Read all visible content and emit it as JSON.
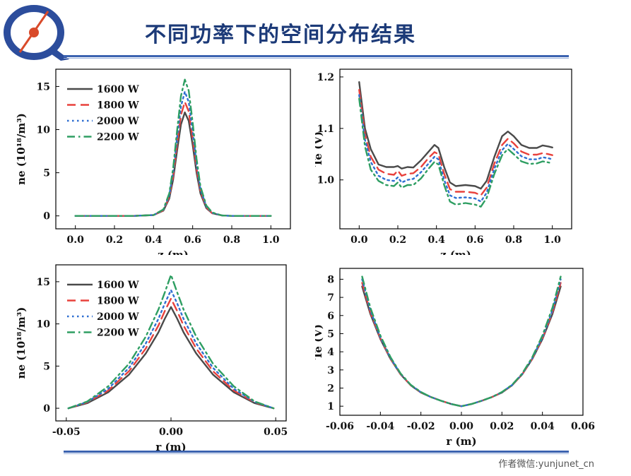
{
  "slide": {
    "title": "不同功率下的空间分布结果",
    "footer": "作者微信:yunjunet_cn",
    "colors": {
      "title": "#1c3a78",
      "rule": "#3c63b0",
      "logo_ring": "#2c4d9c",
      "logo_accent": "#d94a2a"
    }
  },
  "chart_data": [
    {
      "type": "line",
      "xlabel": "z  (m)",
      "ylabel": "ne  (10¹⁸/m³)",
      "xlim": [
        -0.1,
        1.1
      ],
      "ylim": [
        -1.5,
        17
      ],
      "xticks": [
        0.0,
        0.2,
        0.4,
        0.6,
        0.8,
        1.0
      ],
      "yticks": [
        0,
        5,
        10,
        15
      ],
      "xtick_labels": [
        "0.0",
        "0.2",
        "0.4",
        "0.6",
        "0.8",
        "1.0"
      ],
      "ytick_labels": [
        "0",
        "5",
        "10",
        "15"
      ],
      "legend": "top-left",
      "series": [
        {
          "name": "1600 W",
          "color": "#4a4a4a",
          "dash": "solid",
          "x": [
            0,
            0.1,
            0.2,
            0.3,
            0.4,
            0.45,
            0.48,
            0.5,
            0.52,
            0.54,
            0.56,
            0.58,
            0.6,
            0.62,
            0.64,
            0.67,
            0.7,
            0.75,
            0.8,
            0.9,
            1.0
          ],
          "y": [
            0,
            0,
            0,
            0,
            0.1,
            0.6,
            2.0,
            4.2,
            7.5,
            10.6,
            12.0,
            11.0,
            8.2,
            5.0,
            2.6,
            0.9,
            0.3,
            0.05,
            0,
            0,
            0
          ]
        },
        {
          "name": "1800 W",
          "color": "#e8413c",
          "dash": "long",
          "x": [
            0,
            0.1,
            0.2,
            0.3,
            0.4,
            0.45,
            0.48,
            0.5,
            0.52,
            0.54,
            0.56,
            0.58,
            0.6,
            0.62,
            0.64,
            0.67,
            0.7,
            0.75,
            0.8,
            0.9,
            1.0
          ],
          "y": [
            0,
            0,
            0,
            0,
            0.1,
            0.65,
            2.2,
            4.6,
            8.3,
            11.7,
            13.2,
            12.1,
            9.0,
            5.5,
            2.9,
            1.0,
            0.3,
            0.05,
            0,
            0,
            0
          ]
        },
        {
          "name": "2000 W",
          "color": "#2f6fd1",
          "dash": "dot",
          "x": [
            0,
            0.1,
            0.2,
            0.3,
            0.4,
            0.45,
            0.48,
            0.5,
            0.52,
            0.54,
            0.56,
            0.58,
            0.6,
            0.62,
            0.64,
            0.67,
            0.7,
            0.75,
            0.8,
            0.9,
            1.0
          ],
          "y": [
            0,
            0,
            0,
            0,
            0.1,
            0.7,
            2.4,
            5.0,
            9.0,
            12.7,
            14.4,
            13.2,
            9.8,
            6.0,
            3.1,
            1.1,
            0.35,
            0.05,
            0,
            0,
            0
          ]
        },
        {
          "name": "2200 W",
          "color": "#2e9e62",
          "dash": "dashdot",
          "x": [
            0,
            0.1,
            0.2,
            0.3,
            0.4,
            0.45,
            0.48,
            0.5,
            0.52,
            0.54,
            0.56,
            0.58,
            0.6,
            0.62,
            0.64,
            0.67,
            0.7,
            0.75,
            0.8,
            0.9,
            1.0
          ],
          "y": [
            0,
            0,
            0,
            0,
            0.1,
            0.75,
            2.6,
            5.5,
            9.8,
            13.9,
            15.8,
            14.5,
            10.8,
            6.6,
            3.4,
            1.2,
            0.4,
            0.05,
            0,
            0,
            0
          ]
        }
      ]
    },
    {
      "type": "line",
      "xlabel": "z  (m)",
      "ylabel": "Te  (V)",
      "xlim": [
        -0.1,
        1.1
      ],
      "ylim": [
        0.905,
        1.215
      ],
      "xticks": [
        0.0,
        0.2,
        0.4,
        0.6,
        0.8,
        1.0
      ],
      "yticks": [
        1.0,
        1.1,
        1.2
      ],
      "xtick_labels": [
        "0.0",
        "0.2",
        "0.4",
        "0.6",
        "0.8",
        "1.0"
      ],
      "ytick_labels": [
        "1.0",
        "1.1",
        "1.2"
      ],
      "legend": "none",
      "series": [
        {
          "name": "1600 W",
          "color": "#4a4a4a",
          "dash": "solid",
          "x": [
            0.0,
            0.03,
            0.06,
            0.1,
            0.14,
            0.18,
            0.2,
            0.22,
            0.25,
            0.28,
            0.32,
            0.36,
            0.39,
            0.41,
            0.44,
            0.47,
            0.5,
            0.55,
            0.6,
            0.63,
            0.66,
            0.7,
            0.74,
            0.77,
            0.8,
            0.84,
            0.88,
            0.92,
            0.95,
            0.98,
            1.0
          ],
          "y": [
            1.19,
            1.1,
            1.06,
            1.03,
            1.025,
            1.025,
            1.027,
            1.022,
            1.025,
            1.024,
            1.038,
            1.055,
            1.068,
            1.062,
            1.025,
            0.995,
            0.988,
            0.99,
            0.988,
            0.983,
            0.998,
            1.045,
            1.085,
            1.094,
            1.085,
            1.068,
            1.062,
            1.062,
            1.067,
            1.065,
            1.063
          ]
        },
        {
          "name": "1800 W",
          "color": "#e8413c",
          "dash": "long",
          "x": [
            0.0,
            0.03,
            0.06,
            0.1,
            0.14,
            0.18,
            0.2,
            0.22,
            0.25,
            0.28,
            0.32,
            0.36,
            0.39,
            0.41,
            0.44,
            0.47,
            0.5,
            0.55,
            0.6,
            0.63,
            0.66,
            0.7,
            0.74,
            0.77,
            0.8,
            0.84,
            0.88,
            0.92,
            0.95,
            0.98,
            1.0
          ],
          "y": [
            1.175,
            1.088,
            1.045,
            1.02,
            1.012,
            1.01,
            1.018,
            1.008,
            1.012,
            1.013,
            1.025,
            1.043,
            1.054,
            1.05,
            1.012,
            0.982,
            0.977,
            0.977,
            0.975,
            0.97,
            0.985,
            1.032,
            1.068,
            1.08,
            1.071,
            1.055,
            1.049,
            1.049,
            1.052,
            1.05,
            1.048
          ]
        },
        {
          "name": "2000 W",
          "color": "#2f6fd1",
          "dash": "dot",
          "x": [
            0.0,
            0.03,
            0.06,
            0.1,
            0.14,
            0.18,
            0.2,
            0.22,
            0.25,
            0.28,
            0.32,
            0.36,
            0.39,
            0.41,
            0.44,
            0.47,
            0.5,
            0.55,
            0.6,
            0.63,
            0.66,
            0.7,
            0.74,
            0.77,
            0.8,
            0.84,
            0.88,
            0.92,
            0.95,
            0.98,
            1.0
          ],
          "y": [
            1.165,
            1.078,
            1.035,
            1.008,
            1.0,
            0.998,
            1.005,
            0.995,
            1.0,
            1.002,
            1.015,
            1.032,
            1.045,
            1.04,
            1.0,
            0.97,
            0.965,
            0.966,
            0.964,
            0.958,
            0.975,
            1.022,
            1.058,
            1.07,
            1.06,
            1.046,
            1.04,
            1.04,
            1.044,
            1.042,
            1.04
          ]
        },
        {
          "name": "2200 W",
          "color": "#2e9e62",
          "dash": "dashdot",
          "x": [
            0.0,
            0.03,
            0.06,
            0.1,
            0.14,
            0.18,
            0.2,
            0.22,
            0.25,
            0.28,
            0.32,
            0.36,
            0.39,
            0.41,
            0.44,
            0.47,
            0.5,
            0.55,
            0.6,
            0.63,
            0.66,
            0.7,
            0.74,
            0.77,
            0.8,
            0.84,
            0.88,
            0.92,
            0.95,
            0.98,
            1.0
          ],
          "y": [
            1.158,
            1.065,
            1.02,
            0.998,
            0.99,
            0.988,
            0.995,
            0.985,
            0.99,
            0.99,
            1.003,
            1.022,
            1.035,
            1.03,
            0.99,
            0.958,
            0.952,
            0.955,
            0.952,
            0.948,
            0.965,
            1.012,
            1.048,
            1.06,
            1.05,
            1.036,
            1.031,
            1.032,
            1.036,
            1.034,
            1.032
          ]
        }
      ]
    },
    {
      "type": "line",
      "xlabel": "r  (m)",
      "ylabel": "ne  (10¹⁸/m³)",
      "xlim": [
        -0.055,
        0.055
      ],
      "ylim": [
        -1.5,
        17
      ],
      "xticks": [
        -0.05,
        0.0,
        0.05
      ],
      "yticks": [
        0,
        5,
        10,
        15
      ],
      "xtick_labels": [
        "-0.05",
        "0.00",
        "0.05"
      ],
      "ytick_labels": [
        "0",
        "5",
        "10",
        "15"
      ],
      "legend": "top-left",
      "series": [
        {
          "name": "1600 W",
          "color": "#4a4a4a",
          "dash": "solid",
          "x": [
            -0.049,
            -0.04,
            -0.03,
            -0.02,
            -0.012,
            -0.006,
            -0.003,
            0.0,
            0.003,
            0.006,
            0.012,
            0.02,
            0.03,
            0.04,
            0.049
          ],
          "y": [
            0,
            0.6,
            1.9,
            4.0,
            6.5,
            9.0,
            10.6,
            12.0,
            10.6,
            9.0,
            6.5,
            4.0,
            1.9,
            0.6,
            0
          ]
        },
        {
          "name": "1800 W",
          "color": "#e8413c",
          "dash": "long",
          "x": [
            -0.049,
            -0.04,
            -0.03,
            -0.02,
            -0.012,
            -0.006,
            -0.003,
            0.0,
            0.003,
            0.006,
            0.012,
            0.02,
            0.03,
            0.04,
            0.049
          ],
          "y": [
            0,
            0.7,
            2.1,
            4.4,
            7.1,
            9.8,
            11.5,
            13.0,
            11.5,
            9.8,
            7.1,
            4.4,
            2.1,
            0.7,
            0
          ]
        },
        {
          "name": "2000 W",
          "color": "#2f6fd1",
          "dash": "dot",
          "x": [
            -0.049,
            -0.04,
            -0.03,
            -0.02,
            -0.012,
            -0.006,
            -0.003,
            0.0,
            0.003,
            0.006,
            0.012,
            0.02,
            0.03,
            0.04,
            0.049
          ],
          "y": [
            0,
            0.75,
            2.3,
            4.8,
            7.7,
            10.6,
            12.4,
            14.0,
            12.4,
            10.6,
            7.7,
            4.8,
            2.3,
            0.75,
            0
          ]
        },
        {
          "name": "2200 W",
          "color": "#2e9e62",
          "dash": "dashdot",
          "x": [
            -0.049,
            -0.04,
            -0.03,
            -0.02,
            -0.012,
            -0.006,
            -0.003,
            0.0,
            0.003,
            0.006,
            0.012,
            0.02,
            0.03,
            0.04,
            0.049
          ],
          "y": [
            0,
            0.8,
            2.6,
            5.3,
            8.5,
            11.7,
            13.7,
            15.8,
            13.7,
            11.7,
            8.5,
            5.3,
            2.6,
            0.8,
            0
          ]
        }
      ]
    },
    {
      "type": "line",
      "xlabel": "r  (m)",
      "ylabel": "Te  (V)",
      "xlim": [
        -0.06,
        0.06
      ],
      "ylim": [
        0.5,
        8.6
      ],
      "xticks": [
        -0.06,
        -0.04,
        -0.02,
        0.0,
        0.02,
        0.04,
        0.06
      ],
      "yticks": [
        1,
        2,
        3,
        4,
        5,
        6,
        7,
        8
      ],
      "xtick_labels": [
        "-0.06",
        "-0.04",
        "-0.02",
        "0.00",
        "0.02",
        "0.04",
        "0.06"
      ],
      "ytick_labels": [
        "1",
        "2",
        "3",
        "4",
        "5",
        "6",
        "7",
        "8"
      ],
      "legend": "none",
      "series": [
        {
          "name": "1600 W",
          "color": "#4a4a4a",
          "dash": "solid",
          "x": [
            -0.049,
            -0.045,
            -0.04,
            -0.035,
            -0.03,
            -0.025,
            -0.02,
            -0.015,
            -0.01,
            -0.005,
            0.0,
            0.005,
            0.01,
            0.015,
            0.02,
            0.025,
            0.03,
            0.035,
            0.04,
            0.045,
            0.049
          ],
          "y": [
            7.6,
            6.1,
            4.7,
            3.6,
            2.75,
            2.15,
            1.75,
            1.5,
            1.3,
            1.12,
            1.0,
            1.12,
            1.3,
            1.5,
            1.75,
            2.15,
            2.75,
            3.6,
            4.7,
            6.1,
            7.6
          ]
        },
        {
          "name": "1800 W",
          "color": "#e8413c",
          "dash": "long",
          "x": [
            -0.049,
            -0.045,
            -0.04,
            -0.035,
            -0.03,
            -0.025,
            -0.02,
            -0.015,
            -0.01,
            -0.005,
            0.0,
            0.005,
            0.01,
            0.015,
            0.02,
            0.025,
            0.03,
            0.035,
            0.04,
            0.045,
            0.049
          ],
          "y": [
            7.8,
            6.2,
            4.75,
            3.62,
            2.76,
            2.16,
            1.76,
            1.5,
            1.3,
            1.12,
            1.0,
            1.12,
            1.3,
            1.5,
            1.76,
            2.16,
            2.76,
            3.62,
            4.75,
            6.2,
            7.8
          ]
        },
        {
          "name": "2000 W",
          "color": "#2f6fd1",
          "dash": "dot",
          "x": [
            -0.049,
            -0.045,
            -0.04,
            -0.035,
            -0.03,
            -0.025,
            -0.02,
            -0.015,
            -0.01,
            -0.005,
            0.0,
            0.005,
            0.01,
            0.015,
            0.02,
            0.025,
            0.03,
            0.035,
            0.04,
            0.045,
            0.049
          ],
          "y": [
            8.0,
            6.3,
            4.8,
            3.65,
            2.78,
            2.17,
            1.77,
            1.5,
            1.3,
            1.12,
            1.0,
            1.12,
            1.3,
            1.5,
            1.77,
            2.17,
            2.78,
            3.65,
            4.8,
            6.3,
            8.0
          ]
        },
        {
          "name": "2200 W",
          "color": "#2e9e62",
          "dash": "dashdot",
          "x": [
            -0.049,
            -0.045,
            -0.04,
            -0.035,
            -0.03,
            -0.025,
            -0.02,
            -0.015,
            -0.01,
            -0.005,
            0.0,
            0.005,
            0.01,
            0.015,
            0.02,
            0.025,
            0.03,
            0.035,
            0.04,
            0.045,
            0.049
          ],
          "y": [
            8.15,
            6.45,
            4.9,
            3.7,
            2.8,
            2.18,
            1.78,
            1.5,
            1.3,
            1.12,
            1.0,
            1.12,
            1.3,
            1.5,
            1.78,
            2.18,
            2.8,
            3.7,
            4.9,
            6.45,
            8.15
          ]
        }
      ]
    }
  ]
}
